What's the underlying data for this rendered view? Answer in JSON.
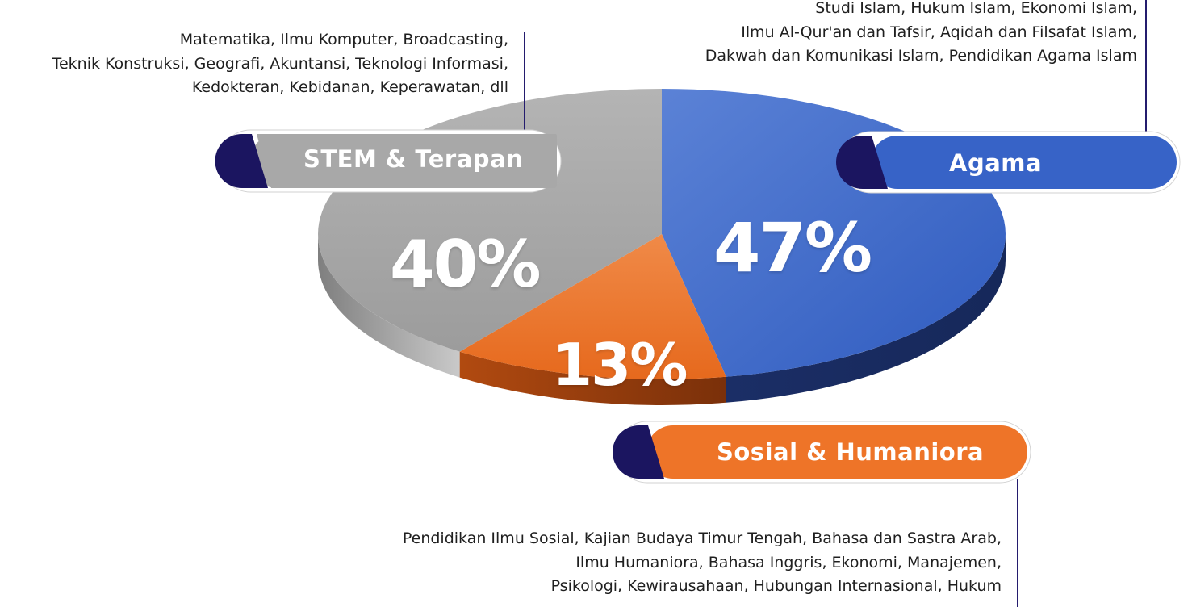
{
  "colors": {
    "agama": "#3763c7",
    "stem": "#a6a6a6",
    "sosial": "#ee7428",
    "navy": "#1b1560",
    "line": "#241c6e"
  },
  "chart_data": {
    "type": "pie",
    "title": "",
    "slices": [
      {
        "name": "Agama",
        "value": 47,
        "label": "47%",
        "description": [
          "Studi Islam, Hukum Islam, Ekonomi Islam,",
          "Ilmu Al-Qur'an dan Tafsir, Aqidah dan Filsafat Islam,",
          "Dakwah dan Komunikasi Islam, Pendidikan Agama Islam"
        ]
      },
      {
        "name": "Sosial & Humaniora",
        "value": 13,
        "label": "13%",
        "description": [
          "Pendidikan Ilmu Sosial, Kajian Budaya Timur Tengah, Bahasa dan Sastra Arab,",
          "Ilmu Humaniora, Bahasa Inggris, Ekonomi, Manajemen,",
          "Psikologi, Kewirausahaan, Hubungan Internasional, Hukum"
        ]
      },
      {
        "name": "STEM & Terapan",
        "value": 40,
        "label": "40%",
        "description": [
          "Matematika, Ilmu Komputer, Broadcasting,",
          "Teknik Konstruksi, Geografi, Akuntansi, Teknologi Informasi,",
          "Kedokteran, Kebidanan, Keperawatan, dll"
        ]
      }
    ]
  }
}
